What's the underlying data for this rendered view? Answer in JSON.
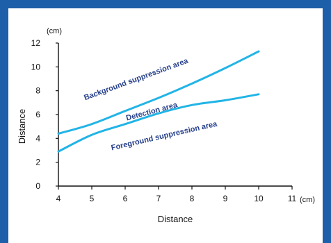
{
  "chart_data": {
    "type": "line",
    "xlabel": "Distance",
    "ylabel": "Distance",
    "x_unit": "(cm)",
    "y_unit": "(cm)",
    "xlim": [
      4,
      11
    ],
    "ylim": [
      0,
      12
    ],
    "x_ticks": [
      "4",
      "5",
      "6",
      "7",
      "8",
      "9",
      "10",
      "11"
    ],
    "y_ticks": [
      "0",
      "2",
      "4",
      "6",
      "8",
      "10",
      "12"
    ],
    "grid": false,
    "series": [
      {
        "color": "#22b4e6",
        "x": [
          4,
          5,
          6,
          7,
          8,
          9,
          10
        ],
        "y": [
          4.4,
          5.2,
          6.3,
          7.4,
          8.6,
          9.9,
          11.3
        ]
      },
      {
        "color": "#22b4e6",
        "x": [
          4,
          5,
          6,
          7,
          8,
          9,
          10
        ],
        "y": [
          2.9,
          4.3,
          5.2,
          6.1,
          6.8,
          7.2,
          7.7
        ]
      }
    ],
    "annotations": [
      {
        "text": "Background suppression area",
        "x": 4.8,
        "y": 7.2,
        "angle": -20
      },
      {
        "text": "Detection area",
        "x": 6.05,
        "y": 5.5,
        "angle": -15
      },
      {
        "text": "Foreground suppression area",
        "x": 5.6,
        "y": 3.0,
        "angle": -13
      }
    ]
  },
  "colors": {
    "frame": "#1d5fa8",
    "annotation": "#27408b",
    "line": "#22b4e6"
  }
}
